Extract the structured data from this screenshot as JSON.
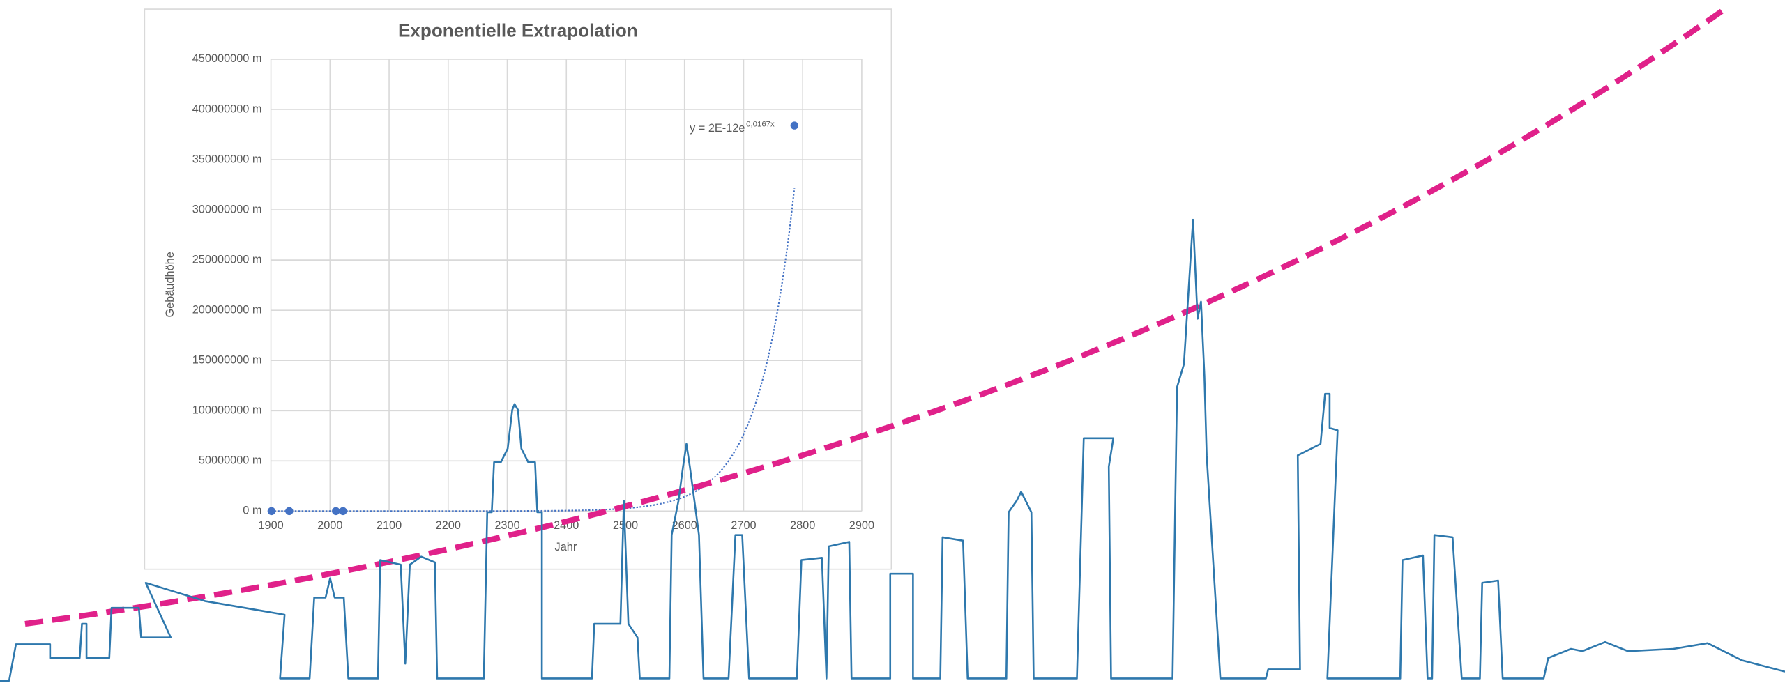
{
  "chart_data": {
    "type": "scatter",
    "title": "Exponentielle Extrapolation",
    "x_label": "Jahr",
    "y_label": "Gebäudhöhe",
    "series": [
      {
        "name": "Gebäudhöhe",
        "color": "#4472c4",
        "x": [
          1901,
          1931,
          2010,
          2022,
          2786
        ],
        "values": [
          0,
          0,
          0,
          0,
          384000000
        ]
      }
    ],
    "trendline": {
      "label": "y = 2E-12e",
      "exponent": "0,0167x",
      "color": "#4472c4"
    },
    "xlim": [
      1900,
      2900
    ],
    "xticks": [
      1900,
      2000,
      2100,
      2200,
      2300,
      2400,
      2500,
      2600,
      2700,
      2800,
      2900
    ],
    "ylim": [
      0,
      450000000
    ],
    "yticks": [
      {
        "value": 0,
        "label": "0 m"
      },
      {
        "value": 50000000,
        "label": "50000000 m"
      },
      {
        "value": 100000000,
        "label": "100000000 m"
      },
      {
        "value": 150000000,
        "label": "150000000 m"
      },
      {
        "value": 200000000,
        "label": "200000000 m"
      },
      {
        "value": 250000000,
        "label": "250000000 m"
      },
      {
        "value": 300000000,
        "label": "300000000 m"
      },
      {
        "value": 350000000,
        "label": "350000000 m"
      },
      {
        "value": 400000000,
        "label": "400000000 m"
      },
      {
        "value": 450000000,
        "label": "450000000 m"
      }
    ],
    "grid": true
  }
}
